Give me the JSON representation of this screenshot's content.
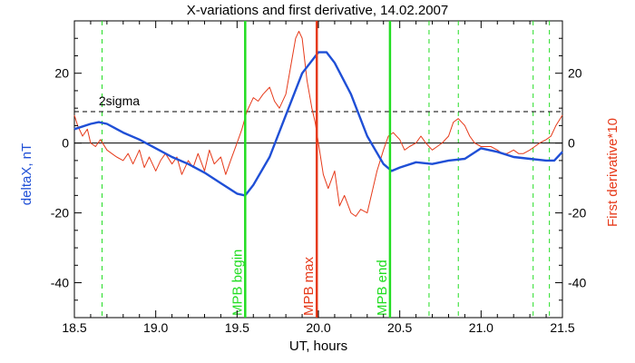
{
  "chart_data": {
    "type": "line",
    "title": "X-variations and first derivative, 14.02.2007",
    "xlabel": "UT, hours",
    "ylabel_left": "deltaX, nT",
    "ylabel_right": "First derivative*10",
    "xlim": [
      18.5,
      21.5
    ],
    "ylim": [
      -50,
      35
    ],
    "x_ticks": [
      18.5,
      19.0,
      19.5,
      20.0,
      20.5,
      21.0,
      21.5
    ],
    "x_tick_labels": [
      "18.5",
      "19.0",
      "19.5",
      "20.0",
      "20.5",
      "21.0",
      "21.5"
    ],
    "y_ticks": [
      -40,
      -20,
      0,
      20
    ],
    "y_tick_labels": [
      "-40",
      "-20",
      "0",
      "20"
    ],
    "two_sigma": {
      "label": "2sigma",
      "value": 9
    },
    "series": [
      {
        "role": "deltaX",
        "color": "#1f4fd6",
        "x": [
          18.5,
          18.6,
          18.65,
          18.7,
          18.8,
          18.9,
          19.0,
          19.1,
          19.2,
          19.3,
          19.4,
          19.5,
          19.55,
          19.6,
          19.7,
          19.8,
          19.9,
          20.0,
          20.05,
          20.1,
          20.2,
          20.3,
          20.4,
          20.45,
          20.5,
          20.6,
          20.7,
          20.8,
          20.9,
          21.0,
          21.1,
          21.2,
          21.3,
          21.4,
          21.45,
          21.5
        ],
        "y": [
          4,
          5.5,
          6,
          5.5,
          3,
          1,
          -1.5,
          -4,
          -6,
          -8.5,
          -11.5,
          -14.5,
          -15,
          -12,
          -4,
          8,
          20,
          26,
          26,
          23,
          14,
          2,
          -6,
          -8,
          -7,
          -5.5,
          -6,
          -5,
          -4.5,
          -1.5,
          -2.5,
          -4,
          -4.5,
          -5,
          -5,
          -2.5
        ]
      },
      {
        "role": "derivative",
        "color": "#e63a1a",
        "x": [
          18.5,
          18.52,
          18.55,
          18.58,
          18.6,
          18.63,
          18.66,
          18.7,
          18.73,
          18.76,
          18.8,
          18.83,
          18.86,
          18.9,
          18.93,
          18.96,
          19.0,
          19.03,
          19.06,
          19.1,
          19.13,
          19.16,
          19.2,
          19.23,
          19.26,
          19.3,
          19.33,
          19.36,
          19.4,
          19.43,
          19.46,
          19.5,
          19.53,
          19.56,
          19.6,
          19.63,
          19.66,
          19.7,
          19.73,
          19.76,
          19.8,
          19.83,
          19.86,
          19.88,
          19.9,
          19.93,
          19.96,
          19.98,
          20.0,
          20.03,
          20.06,
          20.1,
          20.13,
          20.16,
          20.2,
          20.23,
          20.26,
          20.3,
          20.33,
          20.36,
          20.4,
          20.43,
          20.46,
          20.5,
          20.53,
          20.56,
          20.6,
          20.63,
          20.66,
          20.7,
          20.73,
          20.76,
          20.8,
          20.83,
          20.86,
          20.9,
          20.93,
          20.96,
          21.0,
          21.03,
          21.06,
          21.1,
          21.13,
          21.16,
          21.2,
          21.23,
          21.26,
          21.3,
          21.33,
          21.36,
          21.4,
          21.43,
          21.46,
          21.5
        ],
        "y": [
          8,
          5,
          2,
          4,
          0,
          -1,
          1,
          -2,
          -3,
          -4,
          -5,
          -3,
          -6,
          -2,
          -7,
          -4,
          -8,
          -5,
          -3,
          -6,
          -4,
          -9,
          -5,
          -7,
          -3,
          -8,
          -2,
          -6,
          -4,
          -9,
          -5,
          0,
          4,
          9,
          13,
          12,
          14,
          16,
          12,
          10,
          14,
          22,
          30,
          32,
          30,
          18,
          10,
          6,
          0,
          -9,
          -13,
          -8,
          -18,
          -15,
          -20,
          -21,
          -19,
          -20,
          -14,
          -8,
          -2,
          2,
          3,
          1,
          -2,
          -1,
          0,
          2,
          0,
          -2,
          -1,
          0,
          2,
          6,
          7,
          5,
          2,
          0,
          -1,
          -1,
          -1,
          -2,
          -3,
          -3,
          -2,
          -3,
          -3,
          -2,
          -1,
          0,
          1,
          2,
          5,
          8
        ]
      }
    ],
    "dashed_green_x": [
      18.67,
      20.68,
      20.86,
      21.32,
      21.42
    ],
    "events": [
      {
        "label": "MPB begin",
        "x": 19.55,
        "color": "#22dd22"
      },
      {
        "label": "MPB max",
        "x": 19.99,
        "color": "#e63a1a"
      },
      {
        "label": "MPB end",
        "x": 20.44,
        "color": "#22dd22"
      }
    ]
  }
}
